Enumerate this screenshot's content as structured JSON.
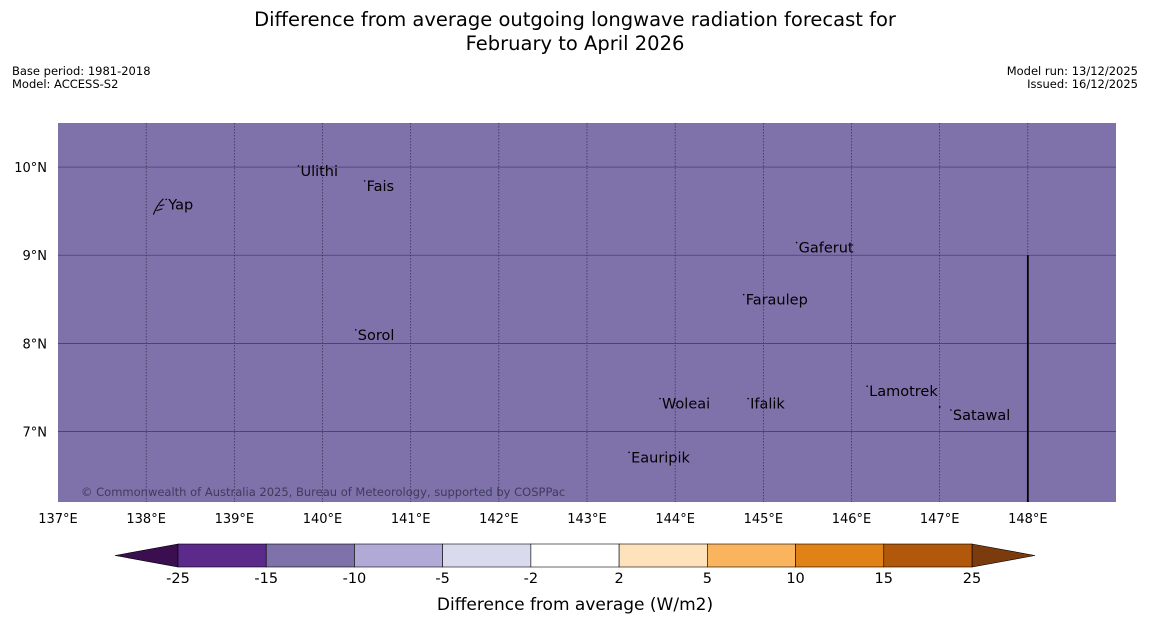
{
  "header": {
    "title_line1": "Difference from average outgoing longwave radiation forecast for",
    "title_line2": "February to April 2026",
    "base_period": "Base period: 1981-2018",
    "model": "Model: ACCESS-S2",
    "model_run": "Model run: 13/12/2025",
    "issued": "Issued: 16/12/2025"
  },
  "map": {
    "fill_color": "#7f72ab",
    "lon_range": [
      137,
      149
    ],
    "lat_range": [
      6.2,
      10.5
    ],
    "lon_ticks": [
      137,
      138,
      139,
      140,
      141,
      142,
      143,
      144,
      145,
      146,
      147,
      148
    ],
    "lon_tick_labels": [
      "137°E",
      "138°E",
      "139°E",
      "140°E",
      "141°E",
      "142°E",
      "143°E",
      "144°E",
      "145°E",
      "146°E",
      "147°E",
      "148°E"
    ],
    "lat_ticks": [
      10,
      9,
      8,
      7
    ],
    "lat_tick_labels": [
      "10°N",
      "9°N",
      "8°N",
      "7°N"
    ],
    "boundary_line": {
      "lon": 148,
      "lat_from": 6.2,
      "lat_to": 9.0
    },
    "places": [
      {
        "name": "Yap",
        "lon": 138.25,
        "lat": 9.52
      },
      {
        "name": "Ulithi",
        "lon": 139.75,
        "lat": 9.9
      },
      {
        "name": "Fais",
        "lon": 140.5,
        "lat": 9.73
      },
      {
        "name": "Gaferut",
        "lon": 145.4,
        "lat": 9.03
      },
      {
        "name": "Faraulep",
        "lon": 144.8,
        "lat": 8.44
      },
      {
        "name": "Sorol",
        "lon": 140.4,
        "lat": 8.04
      },
      {
        "name": "Lamotrek",
        "lon": 146.2,
        "lat": 7.4
      },
      {
        "name": "Woleai",
        "lon": 143.85,
        "lat": 7.26
      },
      {
        "name": "Ifalik",
        "lon": 144.85,
        "lat": 7.26
      },
      {
        "name": "Satawal",
        "lon": 147.15,
        "lat": 7.13
      },
      {
        "name": "Eauripik",
        "lon": 143.5,
        "lat": 6.65
      }
    ],
    "copyright": "© Commonwealth of Australia 2025, Bureau of Meteorology, supported by COSPPac"
  },
  "colorbar": {
    "label": "Difference from average (W/m2)",
    "low_extend_color": "#3b0f4f",
    "high_extend_color": "#7b3b0c",
    "bins": [
      {
        "color": "#5b2a8a"
      },
      {
        "color": "#7f72ab"
      },
      {
        "color": "#b2aad6"
      },
      {
        "color": "#d9dbed"
      },
      {
        "color": "#ffffff"
      },
      {
        "color": "#fde2bc"
      },
      {
        "color": "#fbb45e"
      },
      {
        "color": "#e08215"
      },
      {
        "color": "#b2580a"
      }
    ],
    "tick_labels": [
      "-25",
      "-15",
      "-10",
      "-5",
      "-2",
      "2",
      "5",
      "10",
      "15",
      "25"
    ]
  }
}
